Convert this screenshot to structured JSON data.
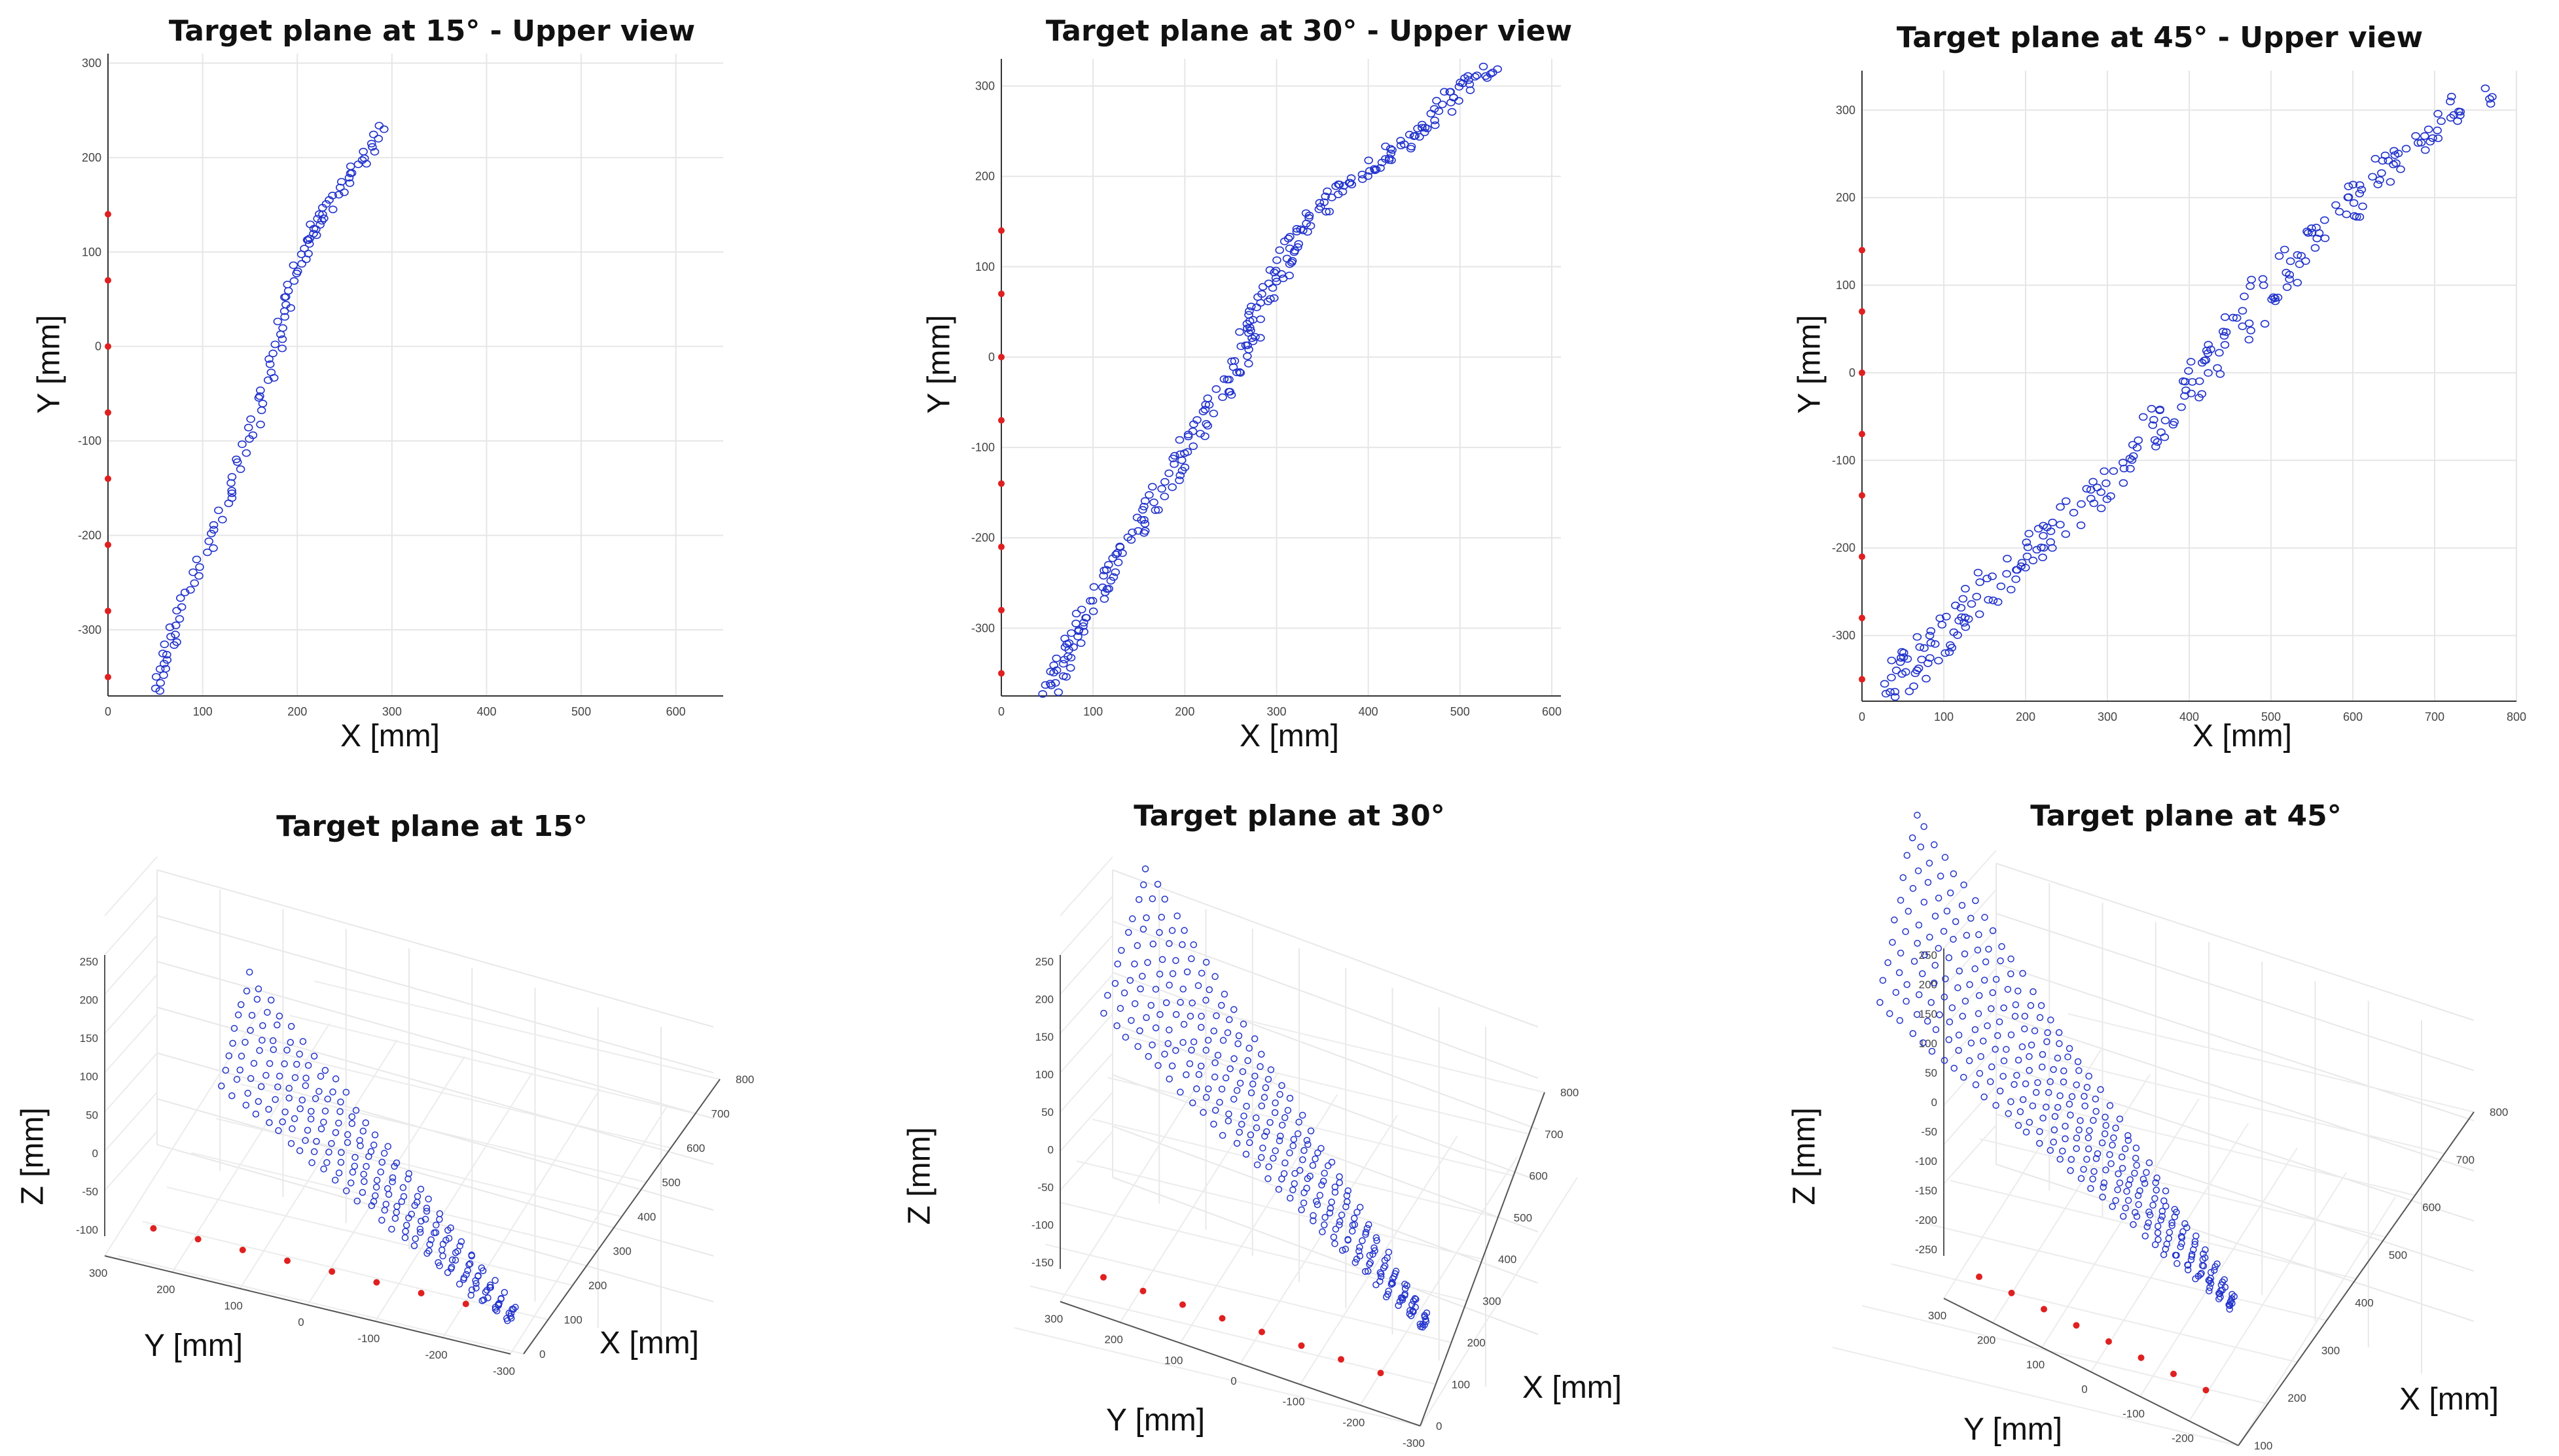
{
  "chart_data": [
    {
      "id": "p15u",
      "type": "scatter",
      "title": "Target plane at 15° - Upper view",
      "xlabel": "X [mm]",
      "ylabel": "Y [mm]",
      "xlim": [
        0,
        650
      ],
      "ylim": [
        -370,
        310
      ],
      "xticks": [
        0,
        100,
        200,
        300,
        400,
        500,
        600
      ],
      "yticks": [
        -300,
        -200,
        -100,
        0,
        100,
        200,
        300
      ],
      "grid": true,
      "sources": {
        "x": [
          0,
          0,
          0,
          0,
          0,
          0,
          0,
          0
        ],
        "y": [
          140,
          70,
          0,
          -70,
          -140,
          -210,
          -280,
          -350
        ],
        "color": "#e02020"
      },
      "path": {
        "x": [
          55,
          60,
          70,
          90,
          110,
          130,
          150,
          165,
          180,
          190,
          200,
          210,
          220,
          235,
          255,
          275,
          290
        ],
        "y": [
          -365,
          -330,
          -300,
          -250,
          -200,
          -150,
          -100,
          -50,
          0,
          40,
          80,
          110,
          130,
          150,
          180,
          205,
          235
        ],
        "width": 14,
        "color": "#2233cc"
      }
    },
    {
      "id": "p30u",
      "type": "scatter",
      "title": "Target plane at 30° - Upper view",
      "xlabel": "X [mm]",
      "ylabel": "Y [mm]",
      "xlim": [
        0,
        610
      ],
      "ylim": [
        -375,
        330
      ],
      "xticks": [
        0,
        100,
        200,
        300,
        400,
        500,
        600
      ],
      "yticks": [
        -300,
        -200,
        -100,
        0,
        100,
        200,
        300
      ],
      "grid": true,
      "sources": {
        "x": [
          0,
          0,
          0,
          0,
          0,
          0,
          0,
          0
        ],
        "y": [
          140,
          70,
          0,
          -70,
          -140,
          -210,
          -280,
          -350
        ],
        "color": "#e02020"
      },
      "path": {
        "x": [
          55,
          70,
          90,
          120,
          150,
          180,
          210,
          240,
          265,
          280,
          300,
          320,
          350,
          390,
          430,
          470,
          500,
          540
        ],
        "y": [
          -370,
          -330,
          -290,
          -240,
          -190,
          -140,
          -90,
          -40,
          10,
          50,
          90,
          130,
          170,
          200,
          230,
          260,
          300,
          320
        ],
        "width": 24,
        "color": "#2233cc"
      }
    },
    {
      "id": "p45u",
      "type": "scatter",
      "title": "Target plane at 45° - Upper view",
      "xlabel": "X [mm]",
      "ylabel": "Y [mm]",
      "xlim": [
        0,
        800
      ],
      "ylim": [
        -375,
        345
      ],
      "xticks": [
        0,
        100,
        200,
        300,
        400,
        500,
        600,
        700,
        800
      ],
      "yticks": [
        -300,
        -200,
        -100,
        0,
        100,
        200,
        300
      ],
      "grid": true,
      "sources": {
        "x": [
          0,
          0,
          0,
          0,
          0,
          0,
          0,
          0
        ],
        "y": [
          140,
          70,
          0,
          -70,
          -140,
          -210,
          -280,
          -350
        ],
        "color": "#e02020"
      },
      "path": {
        "x": [
          40,
          60,
          90,
          130,
          170,
          220,
          270,
          320,
          370,
          420,
          460,
          500,
          550,
          600,
          650,
          700,
          760
        ],
        "y": [
          -370,
          -330,
          -310,
          -270,
          -230,
          -190,
          -150,
          -100,
          -50,
          0,
          50,
          100,
          150,
          200,
          240,
          280,
          325
        ],
        "width": 40,
        "color": "#2233cc"
      }
    },
    {
      "id": "p15",
      "type": "scatter",
      "title": "Target plane at 15°",
      "xlabel": "X [mm]",
      "ylabel": "Y [mm]",
      "zlabel": "Z [mm]",
      "zticks": [
        250,
        200,
        150,
        100,
        50,
        0,
        -50,
        -100
      ],
      "yticks": [
        300,
        200,
        100,
        0,
        -100,
        -200,
        -300
      ],
      "xticks": [
        0,
        100,
        200,
        300,
        400,
        500,
        600,
        700,
        800
      ],
      "grid": true,
      "sources_color": "#e02020",
      "cloud_color": "#2233cc"
    },
    {
      "id": "p30",
      "type": "scatter",
      "title": "Target plane at 30°",
      "xlabel": "X [mm]",
      "ylabel": "Y [mm]",
      "zlabel": "Z [mm]",
      "zticks": [
        250,
        200,
        150,
        100,
        50,
        0,
        -50,
        -100,
        -150
      ],
      "yticks": [
        300,
        200,
        100,
        0,
        -100,
        -200,
        -300
      ],
      "xticks": [
        0,
        100,
        200,
        300,
        400,
        500,
        600,
        700,
        800
      ],
      "grid": true,
      "sources_color": "#e02020",
      "cloud_color": "#2233cc"
    },
    {
      "id": "p45",
      "type": "scatter",
      "title": "Target plane at 45°",
      "xlabel": "X [mm]",
      "ylabel": "Y [mm]",
      "zlabel": "Z [mm]",
      "zticks": [
        250,
        200,
        150,
        100,
        50,
        0,
        -50,
        -100,
        -150,
        -200,
        -250
      ],
      "yticks": [
        300,
        200,
        100,
        0,
        -100,
        -200,
        -300
      ],
      "xticks": [
        100,
        200,
        300,
        400,
        500,
        600,
        700,
        800
      ],
      "grid": true,
      "sources_color": "#e02020",
      "cloud_color": "#2233cc"
    }
  ]
}
